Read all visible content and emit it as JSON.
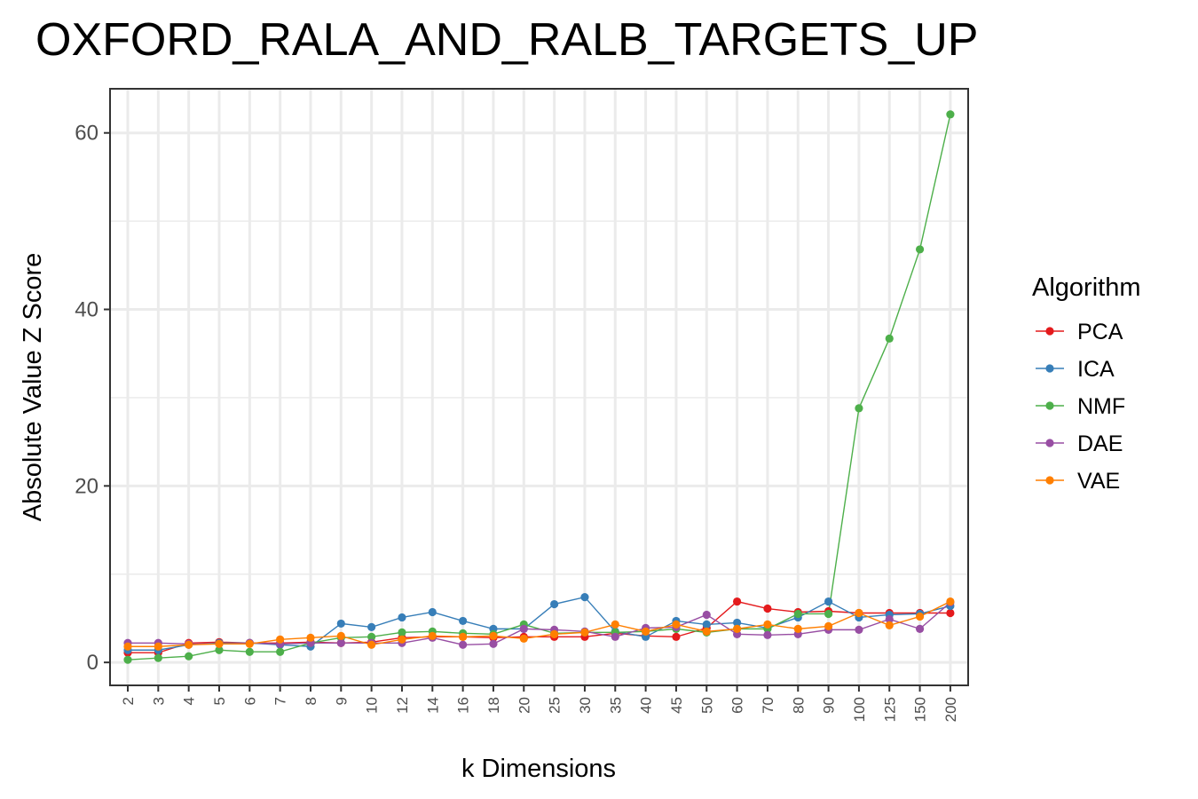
{
  "chart_data": {
    "type": "line",
    "title": "OXFORD_RALA_AND_RALB_TARGETS_UP",
    "xlabel": "k Dimensions",
    "ylabel": "Absolute Value Z Score",
    "categories": [
      "2",
      "3",
      "4",
      "5",
      "6",
      "7",
      "8",
      "9",
      "10",
      "12",
      "14",
      "16",
      "18",
      "20",
      "25",
      "30",
      "35",
      "40",
      "45",
      "50",
      "60",
      "70",
      "80",
      "90",
      "100",
      "125",
      "150",
      "200"
    ],
    "yticks": [
      0,
      20,
      40,
      60
    ],
    "ylim": [
      -2.6,
      65
    ],
    "grid": true,
    "legend": {
      "title": "Algorithm",
      "position": "right"
    },
    "series": [
      {
        "name": "PCA",
        "color": "#E41A1C",
        "values": [
          1.1,
          1.1,
          2.2,
          2.3,
          2.2,
          2.2,
          2.3,
          2.2,
          2.3,
          2.8,
          2.9,
          2.9,
          2.8,
          2.9,
          2.9,
          2.9,
          3.3,
          3.0,
          2.9,
          3.9,
          6.9,
          6.1,
          5.7,
          5.8,
          5.6,
          5.6,
          5.6,
          5.6
        ]
      },
      {
        "name": "ICA",
        "color": "#377EB8",
        "values": [
          1.4,
          1.4,
          2.0,
          2.2,
          2.2,
          2.0,
          1.8,
          4.4,
          4.0,
          5.1,
          5.7,
          4.7,
          3.8,
          3.8,
          6.6,
          7.4,
          3.5,
          2.9,
          4.7,
          4.3,
          4.5,
          3.9,
          5.1,
          6.9,
          5.1,
          5.4,
          5.5,
          6.4
        ]
      },
      {
        "name": "NMF",
        "color": "#4DAF4A",
        "values": [
          0.3,
          0.5,
          0.7,
          1.4,
          1.2,
          1.2,
          2.2,
          2.8,
          2.9,
          3.4,
          3.5,
          3.3,
          3.2,
          4.3,
          3.3,
          3.4,
          3.4,
          3.5,
          3.8,
          3.4,
          3.8,
          3.8,
          5.5,
          5.5,
          28.8,
          36.7,
          46.8,
          62.1
        ]
      },
      {
        "name": "DAE",
        "color": "#984EA3",
        "values": [
          2.2,
          2.2,
          2.1,
          2.1,
          2.2,
          2.1,
          2.2,
          2.2,
          2.2,
          2.2,
          2.8,
          2.0,
          2.1,
          3.8,
          3.7,
          3.5,
          2.9,
          3.9,
          4.0,
          5.4,
          3.2,
          3.1,
          3.2,
          3.7,
          3.7,
          4.9,
          3.8,
          6.8
        ]
      },
      {
        "name": "VAE",
        "color": "#FF7F00",
        "values": [
          1.8,
          1.8,
          2.0,
          2.1,
          2.1,
          2.6,
          2.8,
          3.0,
          2.0,
          2.6,
          3.0,
          2.9,
          3.0,
          2.7,
          3.2,
          3.4,
          4.3,
          3.5,
          4.3,
          3.5,
          3.8,
          4.3,
          3.8,
          4.1,
          5.6,
          4.2,
          5.2,
          6.9
        ]
      }
    ]
  }
}
